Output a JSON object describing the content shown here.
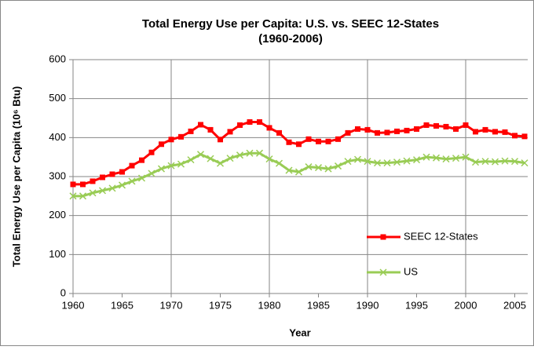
{
  "chart_data": {
    "type": "line",
    "title": [
      "Total Energy Use per Capita: U.S. vs. SEEC 12-States",
      "(1960-2006)"
    ],
    "x_label": "Year",
    "y_label": "Total Energy Use per Capita (10⁶ Btu)",
    "x": [
      1960,
      1961,
      1962,
      1963,
      1964,
      1965,
      1966,
      1967,
      1968,
      1969,
      1970,
      1971,
      1972,
      1973,
      1974,
      1975,
      1976,
      1977,
      1978,
      1979,
      1980,
      1981,
      1982,
      1983,
      1984,
      1985,
      1986,
      1987,
      1988,
      1989,
      1990,
      1991,
      1992,
      1993,
      1994,
      1995,
      1996,
      1997,
      1998,
      1999,
      2000,
      2001,
      2002,
      2003,
      2004,
      2005,
      2006
    ],
    "series": [
      {
        "name": "SEEC 12-States",
        "color": "#ff0000",
        "marker": "square",
        "values": [
          280,
          280,
          288,
          298,
          306,
          312,
          328,
          342,
          362,
          383,
          395,
          402,
          416,
          433,
          420,
          395,
          415,
          432,
          440,
          440,
          425,
          412,
          388,
          383,
          396,
          390,
          390,
          396,
          412,
          422,
          420,
          412,
          413,
          416,
          418,
          422,
          432,
          430,
          428,
          422,
          432,
          415,
          420,
          415,
          414,
          405,
          403
        ]
      },
      {
        "name": "US",
        "color": "#99cc55",
        "marker": "x",
        "values": [
          250,
          250,
          258,
          264,
          270,
          278,
          288,
          296,
          308,
          320,
          328,
          332,
          343,
          357,
          346,
          334,
          347,
          355,
          360,
          360,
          345,
          334,
          316,
          312,
          325,
          323,
          320,
          327,
          339,
          344,
          339,
          335,
          335,
          337,
          340,
          343,
          350,
          348,
          345,
          347,
          350,
          337,
          339,
          338,
          340,
          339,
          335
        ]
      }
    ],
    "xlim": [
      1960,
      2006
    ],
    "xticks": [
      1960,
      1965,
      1970,
      1975,
      1980,
      1985,
      1990,
      1995,
      2000,
      2005
    ],
    "ylim": [
      0,
      600
    ],
    "yticks": [
      0,
      100,
      200,
      300,
      400,
      500,
      600
    ],
    "grid": true,
    "legend": "lower right"
  }
}
